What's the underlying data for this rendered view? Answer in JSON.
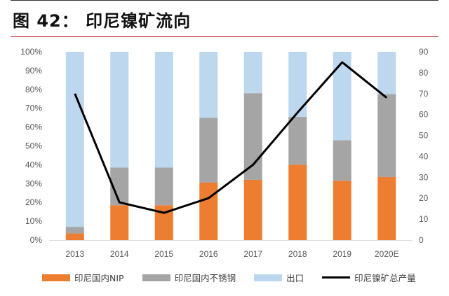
{
  "title": "图 42： 印尼镍矿流向",
  "chart_data": {
    "type": "bar",
    "stacked": true,
    "categories": [
      "2013",
      "2014",
      "2015",
      "2016",
      "2017",
      "2018",
      "2019",
      "2020E"
    ],
    "series": [
      {
        "name": "印尼国内NIP",
        "color": "#ED7D31",
        "axis": "left",
        "values": [
          3.5,
          18.5,
          18.5,
          30.5,
          32,
          40,
          31.5,
          33.5
        ]
      },
      {
        "name": "印尼国内不锈钢",
        "color": "#A5A5A5",
        "axis": "left",
        "values": [
          3.5,
          20,
          20,
          34.5,
          46,
          25.5,
          21.5,
          44
        ]
      },
      {
        "name": "出口",
        "color": "#BDD7EE",
        "axis": "left",
        "values": [
          93,
          61.5,
          61.5,
          35,
          22,
          34.5,
          47,
          22.5
        ]
      },
      {
        "name": "印尼镍矿总产量",
        "type": "line",
        "color": "#000000",
        "axis": "right",
        "values": [
          70,
          18,
          13,
          20,
          36,
          61,
          85,
          68
        ]
      }
    ],
    "yleft": {
      "ylim": [
        0,
        100
      ],
      "ticks": [
        "0%",
        "10%",
        "20%",
        "30%",
        "40%",
        "50%",
        "60%",
        "70%",
        "80%",
        "90%",
        "100%"
      ]
    },
    "yright": {
      "ylim": [
        0,
        90
      ],
      "ticks": [
        "0",
        "10",
        "20",
        "30",
        "40",
        "50",
        "60",
        "70",
        "80",
        "90"
      ]
    },
    "grid": false,
    "legend": "bottom"
  }
}
